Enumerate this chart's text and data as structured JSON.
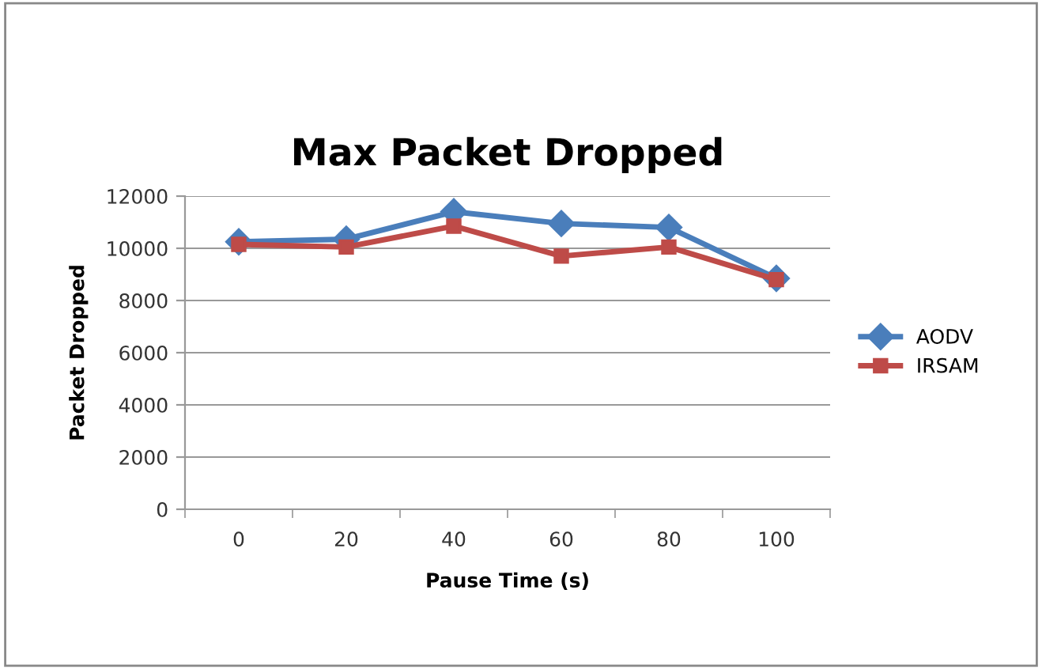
{
  "chart_data": {
    "type": "line",
    "title": "Max Packet Dropped",
    "xlabel": "Pause Time (s)",
    "ylabel": "Packet Dropped",
    "categories": [
      "0",
      "20",
      "40",
      "60",
      "80",
      "100"
    ],
    "series": [
      {
        "name": "AODV",
        "color": "#4a7ebb",
        "marker": "diamond",
        "values": [
          10250,
          10350,
          11400,
          10950,
          10800,
          8850
        ]
      },
      {
        "name": "IRSAM",
        "color": "#be4b48",
        "marker": "square",
        "values": [
          10150,
          10050,
          10850,
          9700,
          10050,
          8800
        ]
      }
    ],
    "ylim": [
      0,
      12000
    ],
    "yticks": [
      0,
      2000,
      4000,
      6000,
      8000,
      10000,
      12000
    ],
    "grid": "y",
    "legend": "right"
  }
}
